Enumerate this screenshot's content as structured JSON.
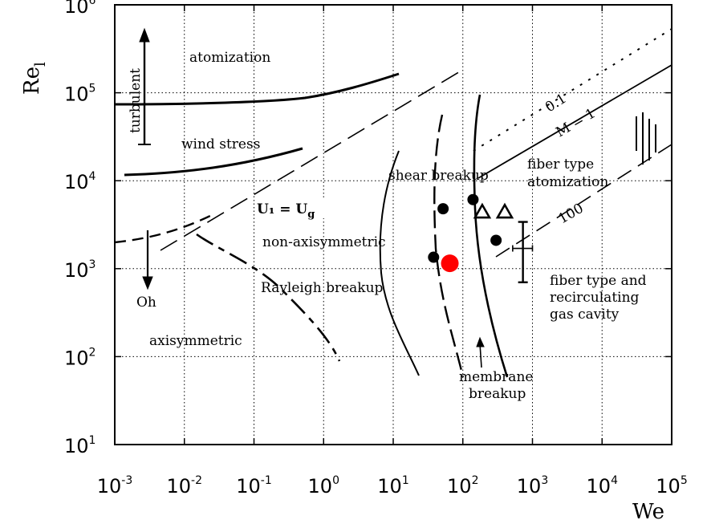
{
  "chart_data": {
    "type": "scatter",
    "x_scale": "log",
    "y_scale": "log",
    "xlim": [
      0.001,
      100000
    ],
    "ylim": [
      10,
      1000000
    ],
    "grid": true,
    "xlabel": "We",
    "ylabel": "Re",
    "ylabel_sub": "l",
    "x_ticks": [
      {
        "base": "10",
        "exp": "-3"
      },
      {
        "base": "10",
        "exp": "-2"
      },
      {
        "base": "10",
        "exp": "-1"
      },
      {
        "base": "10",
        "exp": "0"
      },
      {
        "base": "10",
        "exp": "1"
      },
      {
        "base": "10",
        "exp": "2"
      },
      {
        "base": "10",
        "exp": "3"
      },
      {
        "base": "10",
        "exp": "4"
      },
      {
        "base": "10",
        "exp": "5"
      }
    ],
    "y_ticks": [
      {
        "base": "10",
        "exp": "1"
      },
      {
        "base": "10",
        "exp": "2"
      },
      {
        "base": "10",
        "exp": "3"
      },
      {
        "base": "10",
        "exp": "4"
      },
      {
        "base": "10",
        "exp": "5"
      },
      {
        "base": "10",
        "exp": "6"
      }
    ],
    "series": [
      {
        "marker": "filled-circle",
        "color": "#000000",
        "points": [
          [
            38,
            1350
          ],
          [
            52,
            4800
          ],
          [
            140,
            6100
          ],
          [
            300,
            2100
          ]
        ]
      },
      {
        "marker": "filled-circle",
        "color": "#ff0000",
        "points": [
          [
            65,
            1150
          ]
        ]
      },
      {
        "marker": "open-triangle",
        "color": "#000000",
        "points": [
          [
            190,
            4400
          ],
          [
            400,
            4400
          ]
        ]
      }
    ],
    "error_bar": {
      "x": 730,
      "y_low": 700,
      "y_high": 3400,
      "x_low": 520,
      "x_high": 1000,
      "y": 1700
    },
    "annotations": {
      "atomization": "atomization",
      "turbulent": "turbulent",
      "wind_stress": "wind stress",
      "shear_breakup": "shear breakup",
      "fiber_atomization_1": "fiber type",
      "fiber_atomization_2": "atomization",
      "ul_eq_ug": "U₁ = U",
      "ul_eq_ug_sub": "g",
      "non_axisymmetric": "non-axisymmetric",
      "rayleigh": "Rayleigh breakup",
      "oh": "Oh",
      "axisymmetric": "axisymmetric",
      "membrane_1": "membrane",
      "membrane_2": "breakup",
      "fiber_cavity_1": "fiber type and",
      "fiber_cavity_2": "recirculating",
      "fiber_cavity_3": "gas cavity",
      "m_01": "0.1",
      "m_1": "M = 1",
      "m_100": "100"
    }
  }
}
